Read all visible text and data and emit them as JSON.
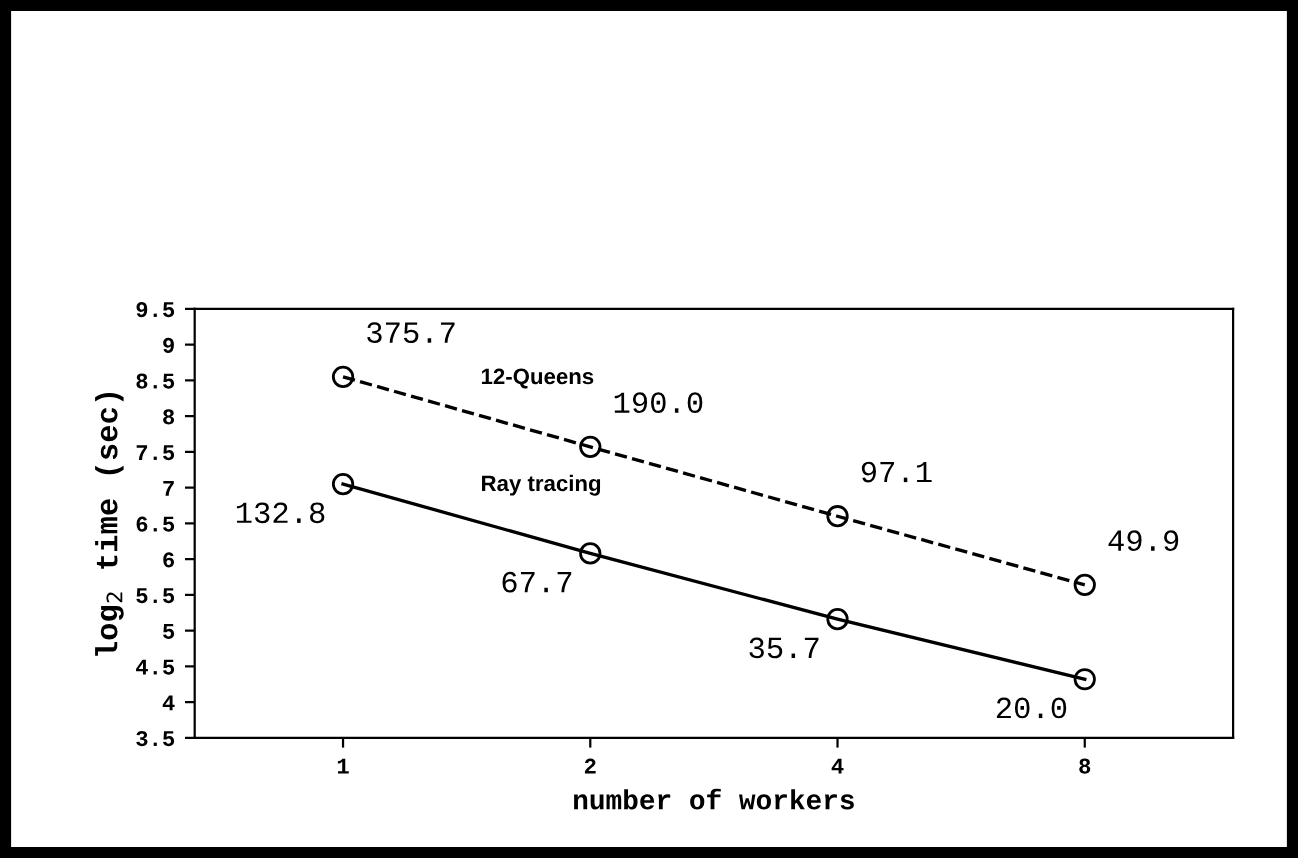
{
  "chart_data": {
    "type": "line",
    "xlabel": "number of workers",
    "ylabel": "log$_{2}$ time (sec)",
    "categories": [
      "1",
      "2",
      "4",
      "8"
    ],
    "series": [
      {
        "name": "12-Queens",
        "color": "#000000",
        "line_style": "dashed",
        "values": [
          8.55,
          7.57,
          6.6,
          5.64
        ]
      },
      {
        "name": "Ray tracing",
        "color": "#000000",
        "line_style": "solid",
        "values": [
          7.05,
          6.08,
          5.16,
          4.32
        ]
      }
    ],
    "annotations": [
      {
        "text": "375.7",
        "x": "1",
        "y": 8.55
      },
      {
        "text": "190.0",
        "x": "2",
        "y": 7.57
      },
      {
        "text": "97.1",
        "x": "4",
        "y": 6.6
      },
      {
        "text": "49.9",
        "x": "8",
        "y": 5.64
      },
      {
        "text": "132.8",
        "x": "1",
        "y": 7.05
      },
      {
        "text": "67.7",
        "x": "2",
        "y": 6.08
      },
      {
        "text": "35.7",
        "x": "4",
        "y": 5.16
      },
      {
        "text": "20.0",
        "x": "8",
        "y": 4.32
      }
    ],
    "ylim": [
      3.5,
      9.5
    ],
    "yticks": [
      3.5,
      4,
      4.5,
      5,
      5.5,
      6,
      6.5,
      7,
      7.5,
      8,
      8.5,
      9,
      9.5
    ],
    "marker": "circle",
    "grid": false,
    "legend": false
  }
}
